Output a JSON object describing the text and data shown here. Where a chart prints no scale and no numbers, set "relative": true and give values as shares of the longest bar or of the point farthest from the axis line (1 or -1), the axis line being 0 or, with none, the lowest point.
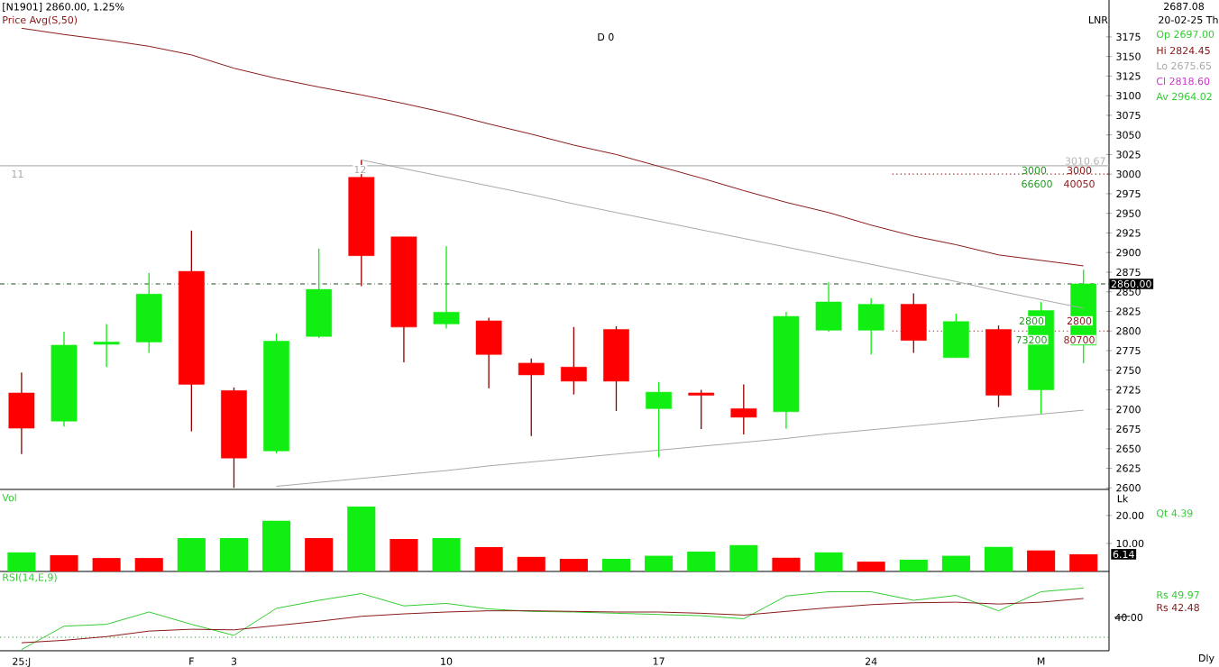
{
  "chart_data": [
    {
      "type": "candlestick",
      "title": "[N1901] 2860.00, 1.25%",
      "categories": [
        null,
        null,
        null,
        null,
        null,
        null,
        null,
        null,
        null,
        null,
        null,
        null,
        null,
        null,
        null,
        null,
        null,
        null,
        null,
        null,
        null,
        null,
        null,
        null,
        null,
        null
      ],
      "ohlc": [
        [
          2721,
          2747,
          2643,
          2676
        ],
        [
          2685,
          2799,
          2678,
          2782
        ],
        [
          2783,
          2809,
          2754,
          2786
        ],
        [
          2786,
          2874,
          2772,
          2847
        ],
        [
          2876,
          2928,
          2672,
          2732
        ],
        [
          2724,
          2728,
          2600,
          2638
        ],
        [
          2647,
          2797,
          2644,
          2787
        ],
        [
          2793,
          2905,
          2791,
          2853
        ],
        [
          2996,
          3018,
          2857,
          2896
        ],
        [
          2920,
          2920,
          2760,
          2805
        ],
        [
          2809,
          2908,
          2803,
          2824
        ],
        [
          2813,
          2817,
          2727,
          2770
        ],
        [
          2759,
          2765,
          2666,
          2744
        ],
        [
          2754,
          2805,
          2719,
          2736
        ],
        [
          2802,
          2806,
          2698,
          2736
        ],
        [
          2701,
          2735,
          2639,
          2722
        ],
        [
          2721,
          2725,
          2675,
          2718
        ],
        [
          2701,
          2732,
          2668,
          2690
        ],
        [
          2697,
          2824.45,
          2675.65,
          2818.6
        ],
        [
          2801,
          2862,
          2799,
          2837
        ],
        [
          2801,
          2842,
          2770,
          2834
        ],
        [
          2834,
          2848,
          2772,
          2788
        ],
        [
          2766,
          2822,
          2766,
          2812
        ],
        [
          2802,
          2807,
          2703,
          2718
        ],
        [
          2725,
          2837,
          2694,
          2826
        ],
        [
          2782,
          2878,
          2759,
          2860
        ]
      ],
      "colors": [
        "#ff0000",
        "#11ee11",
        "#11ee11",
        "#11ee11",
        "#ff0000",
        "#ff0000",
        "#11ee11",
        "#11ee11",
        "#ff0000",
        "#ff0000",
        "#11ee11",
        "#ff0000",
        "#ff0000",
        "#ff0000",
        "#ff0000",
        "#11ee11",
        "#ff0000",
        "#ff0000",
        "#11ee11",
        "#11ee11",
        "#11ee11",
        "#ff0000",
        "#11ee11",
        "#ff0000",
        "#11ee11",
        "#11ee11"
      ],
      "series": [
        {
          "name": "Price Avg(S,50)",
          "type": "line",
          "color": "#8b1a1a",
          "values": [
            3186,
            3178,
            3171,
            3163,
            3152,
            3135,
            3122,
            3111,
            3101,
            3090,
            3078,
            3064,
            3051,
            3037,
            3025,
            3010,
            2995,
            2979,
            2964.02,
            2951,
            2935,
            2921,
            2910,
            2897,
            2890,
            2883
          ]
        },
        {
          "type": "line",
          "color": "#a8a8a8",
          "values": [
            null,
            null,
            null,
            null,
            null,
            null,
            null,
            null,
            3018,
            3007,
            2996,
            2985,
            2974,
            2962,
            2951,
            2940,
            2929,
            2918,
            2907,
            2896,
            2885,
            2874,
            2863,
            2851,
            2840,
            2829
          ]
        },
        {
          "type": "line",
          "color": "#a8a8a8",
          "values": [
            null,
            null,
            null,
            null,
            null,
            null,
            2602,
            2607,
            2612,
            2617,
            2622,
            2628,
            2633,
            2638,
            2643,
            2648,
            2653,
            2658,
            2663,
            2669,
            2674,
            2679,
            2684,
            2689,
            2694,
            2699
          ]
        }
      ],
      "ylim": [
        2598,
        3222
      ],
      "yticks": [
        2600,
        2625,
        2650,
        2675,
        2700,
        2725,
        2750,
        2775,
        2800,
        2825,
        2850,
        2875,
        2900,
        2925,
        2950,
        2975,
        3000,
        3025,
        3050,
        3075,
        3100,
        3125,
        3150,
        3175
      ],
      "tick_labels": "y",
      "ref_lines": [
        {
          "axis": "y",
          "value": 2860,
          "label": "2860.00",
          "color": "#1f4f1f",
          "line_style": "dashdot"
        },
        {
          "axis": "y",
          "value": 3010.67,
          "label": "3010.67",
          "color": "#b4b4b4",
          "line_style": "solid"
        },
        {
          "axis": "y",
          "value": 3000,
          "color": "#8b1a1a",
          "line_style": "dotted"
        },
        {
          "axis": "y",
          "value": 2800,
          "color": "#8b1a1a",
          "line_style": "dotted"
        }
      ],
      "annotations": [
        "D 0",
        "11",
        "12",
        "3000",
        "3000",
        "66600",
        "40050",
        "2800",
        "2800",
        "73200",
        "80700",
        "LNR",
        "2687.08",
        "20-02-25 Th",
        "Op 2697.00",
        "Hi 2824.45",
        "Lo 2675.65",
        "Cl 2818.60",
        "Av 2964.02"
      ]
    },
    {
      "type": "bar",
      "title": "Vol",
      "categories": [
        null,
        null,
        null,
        null,
        null,
        null,
        null,
        null,
        null,
        null,
        null,
        null,
        null,
        null,
        null,
        null,
        null,
        null,
        null,
        null,
        null,
        null,
        null,
        null,
        null,
        null
      ],
      "values": [
        6.8,
        5.8,
        4.8,
        4.8,
        11.9,
        11.9,
        18.1,
        11.9,
        23.2,
        11.6,
        11.9,
        8.7,
        5.2,
        4.5,
        4.5,
        5.6,
        7.1,
        9.4,
        4.9,
        6.8,
        3.5,
        4.2,
        5.6,
        8.8,
        7.5,
        6.14
      ],
      "colors": [
        "#11ee11",
        "#ff0000",
        "#ff0000",
        "#ff0000",
        "#11ee11",
        "#11ee11",
        "#11ee11",
        "#ff0000",
        "#11ee11",
        "#ff0000",
        "#11ee11",
        "#ff0000",
        "#ff0000",
        "#ff0000",
        "#11ee11",
        "#11ee11",
        "#11ee11",
        "#11ee11",
        "#ff0000",
        "#11ee11",
        "#ff0000",
        "#11ee11",
        "#11ee11",
        "#11ee11",
        "#ff0000",
        "#ff0000"
      ],
      "ylim": [
        0,
        29.3
      ],
      "yticks": [
        {
          "value": 10,
          "label": "10.00"
        },
        {
          "value": 20,
          "label": "20.00"
        }
      ],
      "tick_labels": "y",
      "annotations": [
        "Lk",
        "Qt 4.39",
        {
          "text": "6.14",
          "y": 6.14
        }
      ]
    },
    {
      "type": "line",
      "title": "RSI(14,E,9)",
      "categories": [
        "25:J",
        null,
        null,
        null,
        "F",
        "3",
        null,
        null,
        null,
        null,
        "10",
        null,
        null,
        null,
        null,
        "17",
        null,
        null,
        null,
        null,
        "24",
        null,
        null,
        null,
        "M",
        null
      ],
      "series": [
        {
          "color": "#33cc33",
          "values": [
            0,
            0.38,
            0.41,
            0.61,
            0.41,
            0.23,
            0.67,
            0.8,
            0.91,
            0.71,
            0.75,
            0.66,
            0.62,
            0.61,
            0.59,
            0.57,
            0.55,
            0.5,
            0.87,
            0.94,
            0.94,
            0.8,
            0.88,
            0.63,
            0.94,
            1
          ]
        },
        {
          "color": "#8b1a1a",
          "values": [
            0.11,
            0.15,
            0.21,
            0.3,
            0.33,
            0.32,
            0.39,
            0.46,
            0.54,
            0.58,
            0.61,
            0.63,
            0.63,
            0.62,
            0.61,
            0.61,
            0.59,
            0.56,
            0.62,
            0.68,
            0.73,
            0.76,
            0.77,
            0.74,
            0.77,
            0.83
          ]
        }
      ],
      "relative": true,
      "tick_labels": "x",
      "ref_lines": [
        {
          "axis": "y",
          "value": 0.2,
          "color": "#2e8b2e",
          "line_style": "dotted"
        }
      ],
      "annotations": [
        "Rs 49.97",
        "Rs 42.48",
        "Dly",
        "40.00"
      ]
    }
  ]
}
